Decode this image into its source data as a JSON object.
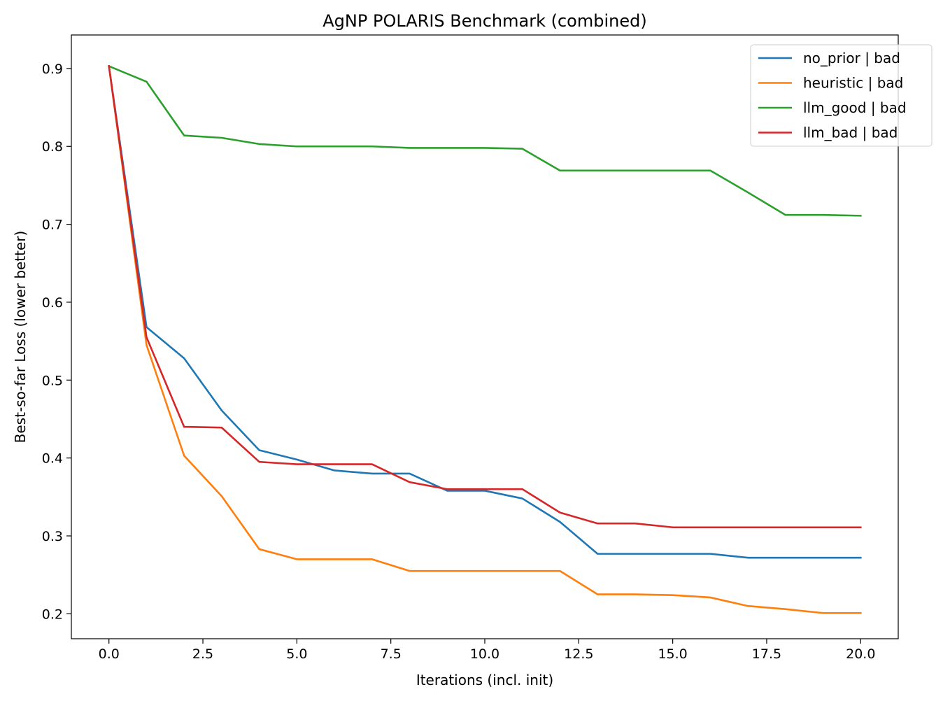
{
  "chart_data": {
    "type": "line",
    "title": "AgNP POLARIS Benchmark (combined)",
    "xlabel": "Iterations (incl. init)",
    "ylabel": "Best-so-far Loss (lower better)",
    "xlim": [
      -1.0,
      21.0
    ],
    "ylim": [
      0.168,
      0.943
    ],
    "xticks": [
      0.0,
      2.5,
      5.0,
      7.5,
      10.0,
      12.5,
      15.0,
      17.5,
      20.0
    ],
    "xtick_labels": [
      "0.0",
      "2.5",
      "5.0",
      "7.5",
      "10.0",
      "12.5",
      "15.0",
      "17.5",
      "20.0"
    ],
    "yticks": [
      0.2,
      0.3,
      0.4,
      0.5,
      0.6,
      0.7,
      0.8,
      0.9
    ],
    "ytick_labels": [
      "0.2",
      "0.3",
      "0.4",
      "0.5",
      "0.6",
      "0.7",
      "0.8",
      "0.9"
    ],
    "grid": false,
    "legend_position": "top-right",
    "x": [
      0,
      1,
      2,
      3,
      4,
      5,
      6,
      7,
      8,
      9,
      10,
      11,
      12,
      13,
      14,
      15,
      16,
      17,
      18,
      19,
      20
    ],
    "series": [
      {
        "name": "no_prior | bad",
        "color": "#1f77b4",
        "values": [
          0.903,
          0.568,
          0.528,
          0.461,
          0.41,
          0.398,
          0.384,
          0.38,
          0.38,
          0.358,
          0.358,
          0.348,
          0.318,
          0.277,
          0.277,
          0.277,
          0.277,
          0.272,
          0.272,
          0.272,
          0.272
        ]
      },
      {
        "name": "heuristic | bad",
        "color": "#ff7f0e",
        "values": [
          0.903,
          0.545,
          0.403,
          0.351,
          0.283,
          0.27,
          0.27,
          0.27,
          0.255,
          0.255,
          0.255,
          0.255,
          0.255,
          0.225,
          0.225,
          0.224,
          0.221,
          0.21,
          0.206,
          0.201,
          0.201
        ]
      },
      {
        "name": "llm_good | bad",
        "color": "#2ca02c",
        "values": [
          0.903,
          0.883,
          0.814,
          0.811,
          0.803,
          0.8,
          0.8,
          0.8,
          0.798,
          0.798,
          0.798,
          0.797,
          0.769,
          0.769,
          0.769,
          0.769,
          0.769,
          0.741,
          0.712,
          0.712,
          0.711
        ]
      },
      {
        "name": "llm_bad | bad",
        "color": "#d62728",
        "values": [
          0.903,
          0.555,
          0.44,
          0.439,
          0.395,
          0.392,
          0.392,
          0.392,
          0.369,
          0.36,
          0.36,
          0.36,
          0.33,
          0.316,
          0.316,
          0.311,
          0.311,
          0.311,
          0.311,
          0.311,
          0.311
        ]
      }
    ]
  }
}
